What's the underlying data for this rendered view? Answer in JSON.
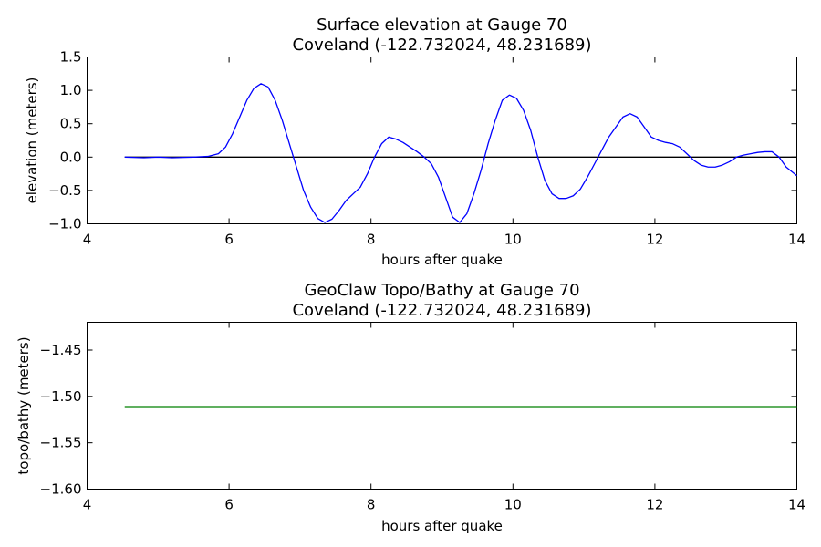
{
  "chart_data": [
    {
      "type": "line",
      "title_line1": "Surface elevation at Gauge 70",
      "title_line2": "Coveland  (-122.732024, 48.231689)",
      "xlabel": "hours after quake",
      "ylabel": "elevation (meters)",
      "xlim": [
        4,
        14
      ],
      "ylim": [
        -1.0,
        1.5
      ],
      "xticks": [
        4,
        6,
        8,
        10,
        12,
        14
      ],
      "xtick_labels": [
        "4",
        "6",
        "8",
        "10",
        "12",
        "14"
      ],
      "yticks": [
        -1.0,
        -0.5,
        0.0,
        0.5,
        1.0,
        1.5
      ],
      "ytick_labels": [
        "−1.0",
        "−0.5",
        "0.0",
        "0.5",
        "1.0",
        "1.5"
      ],
      "grid": false,
      "reference_line": {
        "y": 0.0,
        "x": [
          4.53,
          14.0
        ],
        "color": "#000000"
      },
      "series": [
        {
          "color": "#0000ff",
          "x": [
            4.53,
            4.8,
            5.0,
            5.2,
            5.5,
            5.7,
            5.85,
            5.95,
            6.05,
            6.15,
            6.25,
            6.35,
            6.45,
            6.55,
            6.65,
            6.75,
            6.85,
            6.95,
            7.05,
            7.15,
            7.25,
            7.35,
            7.45,
            7.55,
            7.65,
            7.75,
            7.85,
            7.95,
            8.05,
            8.15,
            8.25,
            8.35,
            8.45,
            8.55,
            8.65,
            8.75,
            8.85,
            8.95,
            9.05,
            9.15,
            9.25,
            9.35,
            9.45,
            9.55,
            9.65,
            9.75,
            9.85,
            9.95,
            10.05,
            10.15,
            10.25,
            10.35,
            10.45,
            10.55,
            10.65,
            10.75,
            10.85,
            10.95,
            11.05,
            11.15,
            11.25,
            11.35,
            11.45,
            11.55,
            11.65,
            11.75,
            11.85,
            11.95,
            12.05,
            12.15,
            12.25,
            12.35,
            12.45,
            12.55,
            12.65,
            12.75,
            12.85,
            12.95,
            13.05,
            13.15,
            13.25,
            13.35,
            13.45,
            13.55,
            13.65,
            13.75,
            13.85,
            14.0
          ],
          "values": [
            0.0,
            -0.01,
            0.0,
            -0.01,
            0.0,
            0.01,
            0.05,
            0.15,
            0.35,
            0.6,
            0.85,
            1.03,
            1.1,
            1.05,
            0.85,
            0.55,
            0.2,
            -0.15,
            -0.5,
            -0.75,
            -0.92,
            -0.98,
            -0.93,
            -0.8,
            -0.65,
            -0.55,
            -0.45,
            -0.25,
            0.0,
            0.2,
            0.3,
            0.27,
            0.22,
            0.15,
            0.08,
            0.0,
            -0.1,
            -0.3,
            -0.6,
            -0.9,
            -0.98,
            -0.85,
            -0.55,
            -0.2,
            0.2,
            0.55,
            0.85,
            0.93,
            0.88,
            0.7,
            0.4,
            0.0,
            -0.35,
            -0.55,
            -0.62,
            -0.62,
            -0.58,
            -0.48,
            -0.3,
            -0.1,
            0.1,
            0.3,
            0.45,
            0.6,
            0.65,
            0.6,
            0.45,
            0.3,
            0.25,
            0.22,
            0.2,
            0.15,
            0.05,
            -0.05,
            -0.12,
            -0.15,
            -0.15,
            -0.12,
            -0.07,
            0.0,
            0.03,
            0.05,
            0.07,
            0.08,
            0.08,
            0.0,
            -0.15,
            -0.28
          ]
        }
      ]
    },
    {
      "type": "line",
      "title_line1": "GeoClaw Topo/Bathy at Gauge 70",
      "title_line2": "Coveland  (-122.732024, 48.231689)",
      "xlabel": "hours after quake",
      "ylabel": "topo/bathy (meters)",
      "xlim": [
        4,
        14
      ],
      "ylim": [
        -1.6,
        -1.42
      ],
      "xticks": [
        4,
        6,
        8,
        10,
        12,
        14
      ],
      "xtick_labels": [
        "4",
        "6",
        "8",
        "10",
        "12",
        "14"
      ],
      "yticks": [
        -1.6,
        -1.55,
        -1.5,
        -1.45
      ],
      "ytick_labels": [
        "−1.60",
        "−1.55",
        "−1.50",
        "−1.45"
      ],
      "grid": false,
      "series": [
        {
          "color": "#008000",
          "x": [
            4.53,
            14.0
          ],
          "values": [
            -1.511,
            -1.511
          ]
        }
      ]
    }
  ]
}
